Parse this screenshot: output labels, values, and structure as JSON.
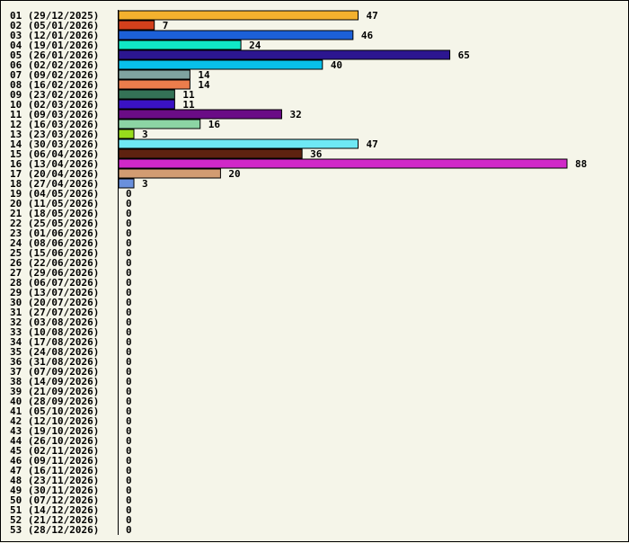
{
  "chart_data": {
    "type": "bar",
    "orientation": "horizontal",
    "title": "",
    "xlabel": "",
    "ylabel": "",
    "xlim": [
      0,
      88
    ],
    "grid": false,
    "legend": "none",
    "categories": [
      "01 (29/12/2025)",
      "02 (05/01/2026)",
      "03 (12/01/2026)",
      "04 (19/01/2026)",
      "05 (26/01/2026)",
      "06 (02/02/2026)",
      "07 (09/02/2026)",
      "08 (16/02/2026)",
      "09 (23/02/2026)",
      "10 (02/03/2026)",
      "11 (09/03/2026)",
      "12 (16/03/2026)",
      "13 (23/03/2026)",
      "14 (30/03/2026)",
      "15 (06/04/2026)",
      "16 (13/04/2026)",
      "17 (20/04/2026)",
      "18 (27/04/2026)",
      "19 (04/05/2026)",
      "20 (11/05/2026)",
      "21 (18/05/2026)",
      "22 (25/05/2026)",
      "23 (01/06/2026)",
      "24 (08/06/2026)",
      "25 (15/06/2026)",
      "26 (22/06/2026)",
      "27 (29/06/2026)",
      "28 (06/07/2026)",
      "29 (13/07/2026)",
      "30 (20/07/2026)",
      "31 (27/07/2026)",
      "32 (03/08/2026)",
      "33 (10/08/2026)",
      "34 (17/08/2026)",
      "35 (24/08/2026)",
      "36 (31/08/2026)",
      "37 (07/09/2026)",
      "38 (14/09/2026)",
      "39 (21/09/2026)",
      "40 (28/09/2026)",
      "41 (05/10/2026)",
      "42 (12/10/2026)",
      "43 (19/10/2026)",
      "44 (26/10/2026)",
      "45 (02/11/2026)",
      "46 (09/11/2026)",
      "47 (16/11/2026)",
      "48 (23/11/2026)",
      "49 (30/11/2026)",
      "50 (07/12/2026)",
      "51 (14/12/2026)",
      "52 (21/12/2026)",
      "53 (28/12/2026)"
    ],
    "values": [
      47,
      7,
      46,
      24,
      65,
      40,
      14,
      14,
      11,
      11,
      32,
      16,
      3,
      47,
      36,
      88,
      20,
      3,
      0,
      0,
      0,
      0,
      0,
      0,
      0,
      0,
      0,
      0,
      0,
      0,
      0,
      0,
      0,
      0,
      0,
      0,
      0,
      0,
      0,
      0,
      0,
      0,
      0,
      0,
      0,
      0,
      0,
      0,
      0,
      0,
      0,
      0,
      0
    ],
    "colors": [
      "#f4b12e",
      "#d2401c",
      "#1c60d8",
      "#10e8c6",
      "#2c1690",
      "#08c0ea",
      "#7fa3a0",
      "#ec7d4c",
      "#347256",
      "#3a12c4",
      "#6a0c86",
      "#8cd4a4",
      "#98dc1c",
      "#6ee8f4",
      "#5e2210",
      "#d028c8",
      "#d29c72",
      "#6a90dc"
    ]
  }
}
